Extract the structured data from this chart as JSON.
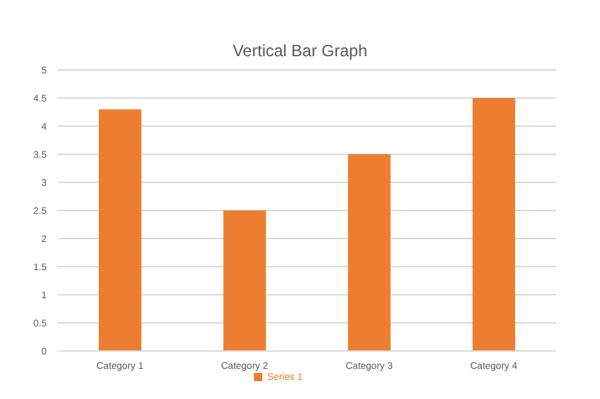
{
  "chart_data": {
    "type": "bar",
    "title": "Vertical Bar Graph",
    "categories": [
      "Category 1",
      "Category 2",
      "Category 3",
      "Category 4"
    ],
    "series": [
      {
        "name": "Series 1",
        "color": "#ed7d31",
        "values": [
          4.3,
          2.5,
          3.5,
          4.5
        ]
      }
    ],
    "ylim": [
      0,
      5
    ],
    "yticks": [
      0,
      0.5,
      1,
      1.5,
      2,
      2.5,
      3,
      3.5,
      4,
      4.5,
      5
    ],
    "grid": "y",
    "legend": "bottom"
  }
}
